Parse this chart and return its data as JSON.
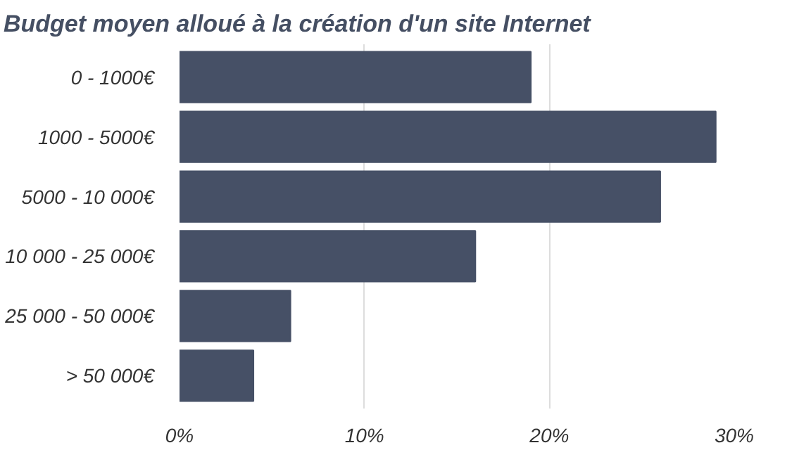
{
  "chart_data": {
    "type": "bar",
    "orientation": "horizontal",
    "title": "Budget moyen alloué à la création d'un site Internet",
    "categories": [
      "0 - 1000€",
      "1000 - 5000€",
      "5000 - 10 000€",
      "10 000 - 25 000€",
      "25 000 - 50 000€",
      "> 50 000€"
    ],
    "values": [
      19,
      29,
      26,
      16,
      6,
      4
    ],
    "color": "#465066",
    "xlim": [
      0,
      30
    ],
    "xticks": [
      {
        "value": 0,
        "label": "0%"
      },
      {
        "value": 10,
        "label": "10%"
      },
      {
        "value": 20,
        "label": "20%"
      },
      {
        "value": 30,
        "label": "30%"
      }
    ],
    "grid": "x"
  }
}
